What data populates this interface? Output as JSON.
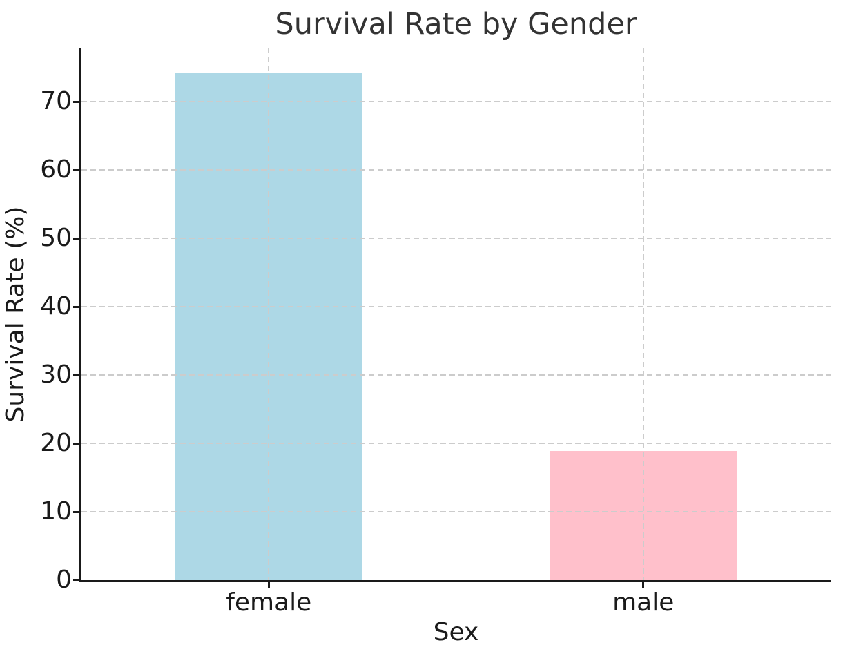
{
  "chart_data": {
    "type": "bar",
    "title": "Survival Rate by Gender",
    "xlabel": "Sex",
    "ylabel": "Survival Rate (%)",
    "categories": [
      "female",
      "male"
    ],
    "values": [
      74.2,
      18.9
    ],
    "bar_colors": [
      "#ADD8E6",
      "#FFC0CB"
    ],
    "yticks": [
      0,
      10,
      20,
      30,
      40,
      50,
      60,
      70
    ],
    "ylim": [
      0,
      77.9
    ],
    "grid": {
      "horizontal_at_yticks": true,
      "vertical_at_category_centers": true,
      "style": "dashed",
      "color": "#cccccc",
      "drawn_above_bars": true
    },
    "legend": "none",
    "colors": {
      "title_text": "#333333",
      "tick_label_text": "#1a1a1a",
      "axis_label_text": "#1a1a1a",
      "axis_spine": "#1a1a1a",
      "background": "#ffffff"
    }
  }
}
